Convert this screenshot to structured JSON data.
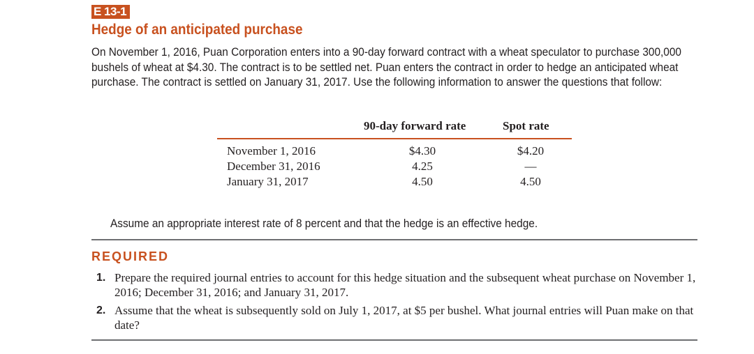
{
  "exercise": {
    "number": "E 13-1",
    "title": "Hedge of an anticipated purchase",
    "intro": "On November 1, 2016, Puan Corporation enters into a 90-day forward contract with a wheat speculator to purchase 300,000 bushels of wheat at $4.30. The contract is to be settled net. Puan enters the contract in order to hedge an anticipated wheat purchase. The contract is settled on January 31, 2017. Use the following information to answer the questions that follow:"
  },
  "table": {
    "columns": [
      "",
      "90-day forward rate",
      "Spot rate"
    ],
    "rows": [
      {
        "date": "November 1, 2016",
        "forward": "$4.30",
        "spot": "$4.20"
      },
      {
        "date": "December 31, 2016",
        "forward": "4.25",
        "spot": "—"
      },
      {
        "date": "January 31, 2017",
        "forward": "4.50",
        "spot": "4.50"
      }
    ]
  },
  "assumption": "Assume an appropriate interest rate of 8 percent and that the hedge is an effective hedge.",
  "required": {
    "heading": "REQUIRED",
    "items": [
      {
        "num": "1.",
        "text": "Prepare the required journal entries to account for this hedge situation and the subsequent wheat purchase on November 1, 2016; December 31, 2016; and January 31, 2017."
      },
      {
        "num": "2.",
        "text": "Assume that the wheat is subsequently sold on July 1, 2017, at $5 per bushel. What journal entries will Puan make on that date?"
      }
    ]
  },
  "colors": {
    "accent": "#c8511f",
    "rule": "#6d6e71",
    "text": "#231f20"
  }
}
